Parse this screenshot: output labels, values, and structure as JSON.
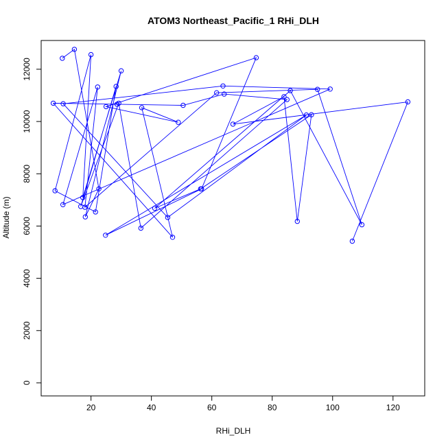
{
  "chart_data": {
    "type": "line",
    "title": "ATOM3 Northeast_Pacific_1 RHi_DLH",
    "xlabel": "RHi_DLH",
    "ylabel": "Altitude (m)",
    "xlim": [
      3.5,
      130.5
    ],
    "ylim": [
      -500,
      13100
    ],
    "x_ticks": [
      20,
      40,
      60,
      80,
      100,
      120
    ],
    "y_ticks": [
      0,
      2000,
      4000,
      6000,
      8000,
      10000,
      12000
    ],
    "line_color": "#0000ff",
    "marker": "open-circle",
    "series": [
      {
        "points": [
          [
            10.5,
            12420
          ],
          [
            14.5,
            12760
          ],
          [
            22.6,
            7420
          ],
          [
            18.1,
            6350
          ],
          [
            30.0,
            11940
          ],
          [
            17.3,
            7090
          ],
          [
            20.0,
            12560
          ],
          [
            8.1,
            7350
          ],
          [
            21.5,
            6540
          ],
          [
            28.3,
            11340
          ],
          [
            16.6,
            6750
          ],
          [
            29.2,
            10700
          ],
          [
            36.5,
            5920
          ],
          [
            84.9,
            10840
          ],
          [
            64.1,
            11050
          ],
          [
            50.5,
            10620
          ],
          [
            28.6,
            10660
          ],
          [
            7.5,
            10700
          ],
          [
            47.0,
            5570
          ],
          [
            36.8,
            10530
          ],
          [
            48.9,
            9970
          ],
          [
            25.0,
            10570
          ],
          [
            74.7,
            12440
          ],
          [
            56.6,
            7420
          ],
          [
            24.8,
            5650
          ],
          [
            91.3,
            10250
          ],
          [
            45.4,
            6330
          ],
          [
            10.8,
            10680
          ],
          [
            63.7,
            11360
          ],
          [
            99.2,
            11240
          ],
          [
            10.7,
            6820
          ],
          [
            22.2,
            11320
          ],
          [
            18.0,
            6720
          ],
          [
            61.6,
            11100
          ],
          [
            95.0,
            11230
          ],
          [
            109.7,
            6050
          ],
          [
            86.0,
            11180
          ],
          [
            41.1,
            6680
          ],
          [
            56.3,
            7420
          ],
          [
            93.0,
            10260
          ],
          [
            88.3,
            6180
          ],
          [
            83.9,
            10950
          ],
          [
            67.0,
            9900
          ],
          [
            124.9,
            10750
          ],
          [
            106.5,
            5420
          ]
        ]
      }
    ]
  }
}
